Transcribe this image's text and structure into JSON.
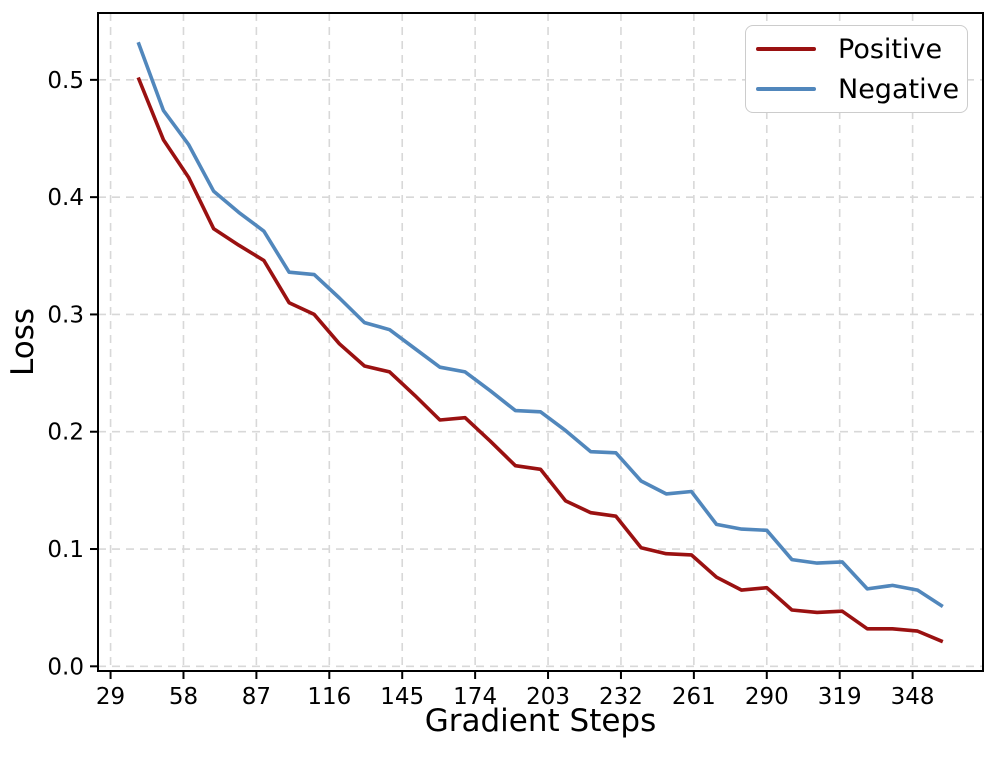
{
  "chart_data": {
    "type": "line",
    "title": "",
    "xlabel": "Gradient Steps",
    "ylabel": "Loss",
    "grid": true,
    "legend_position": "upper right",
    "xlim": [
      24,
      376
    ],
    "ylim": [
      -0.004,
      0.557
    ],
    "xticks": [
      29,
      58,
      87,
      116,
      145,
      174,
      203,
      232,
      261,
      290,
      319,
      348
    ],
    "yticks": [
      0.0,
      0.1,
      0.2,
      0.3,
      0.4,
      0.5
    ],
    "x": [
      40,
      50,
      60,
      70,
      80,
      90,
      100,
      110,
      120,
      130,
      140,
      150,
      160,
      170,
      180,
      190,
      200,
      210,
      220,
      230,
      240,
      250,
      260,
      270,
      280,
      290,
      300,
      310,
      320,
      330,
      340,
      350,
      360
    ],
    "series": [
      {
        "name": "Positive",
        "color": "#9a1111",
        "values": [
          0.502,
          0.449,
          0.417,
          0.373,
          0.359,
          0.346,
          0.31,
          0.3,
          0.275,
          0.256,
          0.251,
          0.231,
          0.21,
          0.212,
          0.192,
          0.171,
          0.168,
          0.141,
          0.131,
          0.128,
          0.101,
          0.096,
          0.095,
          0.076,
          0.065,
          0.067,
          0.048,
          0.046,
          0.047,
          0.032,
          0.032,
          0.03,
          0.021
        ]
      },
      {
        "name": "Negative",
        "color": "#5187bc",
        "values": [
          0.532,
          0.474,
          0.445,
          0.405,
          0.387,
          0.371,
          0.336,
          0.334,
          0.314,
          0.293,
          0.287,
          0.271,
          0.255,
          0.251,
          0.235,
          0.218,
          0.217,
          0.201,
          0.183,
          0.182,
          0.158,
          0.147,
          0.149,
          0.121,
          0.117,
          0.116,
          0.091,
          0.088,
          0.089,
          0.066,
          0.069,
          0.065,
          0.051
        ]
      }
    ]
  },
  "style_colors": {
    "grid": "#d8d8d8",
    "spine": "#000000",
    "tick_label": "#000000",
    "background": "#ffffff",
    "legend_border": "#cccccc"
  }
}
